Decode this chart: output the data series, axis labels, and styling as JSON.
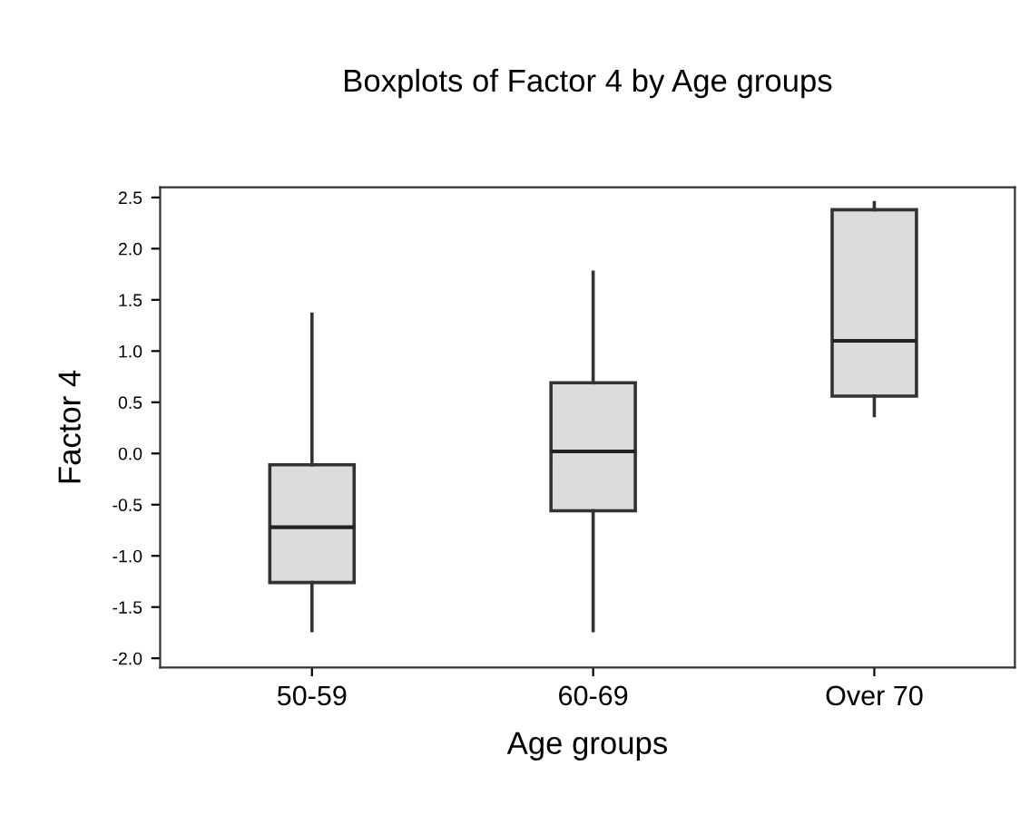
{
  "chart_data": {
    "type": "box",
    "title": "Boxplots of Factor 4 by Age groups",
    "xlabel": "Age groups",
    "ylabel": "Factor 4",
    "categories": [
      "50-59",
      "60-69",
      "Over 70"
    ],
    "series": [
      {
        "color": "#dcdcdc",
        "boxes": [
          {
            "low": -1.73,
            "q1": -1.26,
            "median": -0.72,
            "q3": -0.11,
            "high": 1.36
          },
          {
            "low": -1.73,
            "q1": -0.56,
            "median": 0.02,
            "q3": 0.69,
            "high": 1.77
          },
          {
            "low": 0.37,
            "q1": 0.56,
            "median": 1.1,
            "q3": 2.38,
            "high": 2.45
          }
        ]
      }
    ],
    "ylim": [
      -2.09,
      2.6
    ],
    "yticks": [
      {
        "value": -2.0,
        "label": "-2.0"
      },
      {
        "value": -1.5,
        "label": "-1.5"
      },
      {
        "value": -1.0,
        "label": "-1.0"
      },
      {
        "value": -0.5,
        "label": "-0.5"
      },
      {
        "value": 0.0,
        "label": "0.0"
      },
      {
        "value": 0.5,
        "label": "0.5"
      },
      {
        "value": 1.0,
        "label": "1.0"
      },
      {
        "value": 1.5,
        "label": "1.5"
      },
      {
        "value": 2.0,
        "label": "2.0"
      },
      {
        "value": 2.5,
        "label": "2.5"
      }
    ],
    "grid": false
  }
}
